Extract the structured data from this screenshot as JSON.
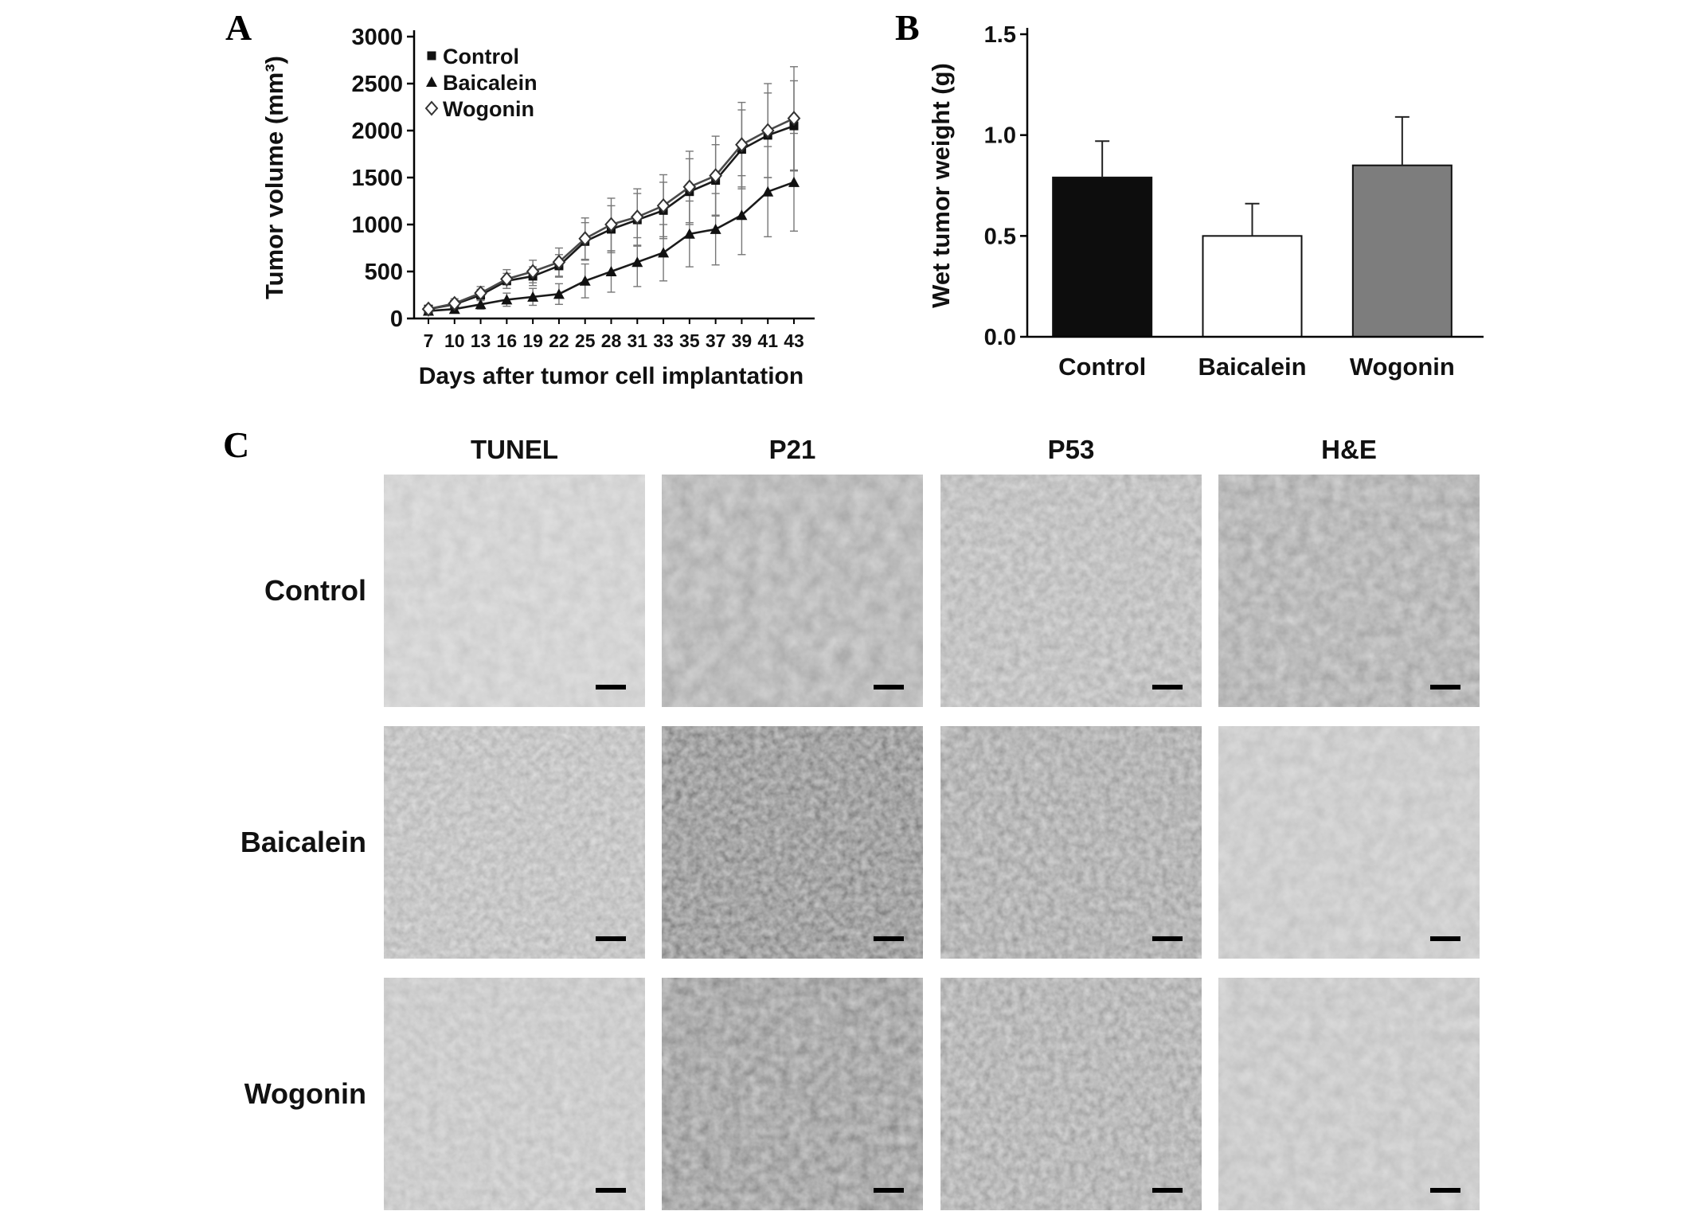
{
  "figure": {
    "panel_a_label": "A",
    "panel_b_label": "B",
    "panel_c_label": "C",
    "background": "#ffffff"
  },
  "chart_data": [
    {
      "id": "tumor-volume",
      "type": "line",
      "title": "",
      "xlabel": "Days after tumor cell implantation",
      "ylabel": "Tumor volume (mm³)",
      "x": [
        7,
        10,
        13,
        16,
        19,
        22,
        25,
        28,
        31,
        33,
        35,
        37,
        39,
        41,
        43
      ],
      "ylim": [
        0,
        3000
      ],
      "yticks": [
        0,
        500,
        1000,
        1500,
        2000,
        2500,
        3000
      ],
      "grid": false,
      "legend_position": "top-left-inside",
      "series": [
        {
          "name": "Control",
          "marker": "filled-square",
          "color": "#1a1a1a",
          "values": [
            100,
            150,
            250,
            400,
            450,
            560,
            820,
            950,
            1050,
            1150,
            1350,
            1470,
            1800,
            1950,
            2050
          ],
          "errors": [
            30,
            40,
            60,
            80,
            100,
            120,
            200,
            250,
            280,
            300,
            350,
            380,
            420,
            450,
            480
          ]
        },
        {
          "name": "Baicalein",
          "marker": "filled-triangle",
          "color": "#1a1a1a",
          "values": [
            80,
            100,
            150,
            200,
            230,
            260,
            400,
            500,
            600,
            700,
            900,
            950,
            1100,
            1350,
            1450
          ],
          "errors": [
            25,
            35,
            50,
            70,
            90,
            110,
            180,
            220,
            260,
            300,
            350,
            380,
            420,
            480,
            520
          ]
        },
        {
          "name": "Wogonin",
          "marker": "open-diamond",
          "color": "#4a4a4a",
          "values": [
            100,
            160,
            270,
            420,
            500,
            600,
            850,
            1000,
            1080,
            1200,
            1400,
            1520,
            1850,
            2000,
            2130
          ],
          "errors": [
            30,
            50,
            70,
            100,
            120,
            150,
            220,
            280,
            300,
            330,
            380,
            420,
            450,
            500,
            550
          ]
        }
      ]
    },
    {
      "id": "wet-tumor-weight",
      "type": "bar",
      "title": "",
      "xlabel": "",
      "ylabel": "Wet tumor weight (g)",
      "categories": [
        "Control",
        "Baicalein",
        "Wogonin"
      ],
      "values": [
        0.79,
        0.5,
        0.85
      ],
      "errors": [
        0.18,
        0.16,
        0.24
      ],
      "bar_colors": [
        "#0d0d0d",
        "#ffffff",
        "#7d7d7d"
      ],
      "ylim": [
        0,
        1.5
      ],
      "yticks": [
        0.0,
        0.5,
        1.0,
        1.5
      ],
      "grid": false
    }
  ],
  "panel_c": {
    "columns": [
      "TUNEL",
      "P21",
      "P53",
      "H&E"
    ],
    "rows": [
      "Control",
      "Baicalein",
      "Wogonin"
    ],
    "tiles": [
      {
        "row": "Control",
        "col": "TUNEL",
        "base": 0.67,
        "contrast": 0.25,
        "freq": 0.055
      },
      {
        "row": "Control",
        "col": "P21",
        "base": 0.52,
        "contrast": 0.38,
        "freq": 0.05
      },
      {
        "row": "Control",
        "col": "P53",
        "base": 0.56,
        "contrast": 0.42,
        "freq": 0.1
      },
      {
        "row": "Control",
        "col": "H&E",
        "base": 0.5,
        "contrast": 0.4,
        "freq": 0.07
      },
      {
        "row": "Baicalein",
        "col": "TUNEL",
        "base": 0.58,
        "contrast": 0.45,
        "freq": 0.12
      },
      {
        "row": "Baicalein",
        "col": "P21",
        "base": 0.38,
        "contrast": 0.58,
        "freq": 0.12
      },
      {
        "row": "Baicalein",
        "col": "P53",
        "base": 0.48,
        "contrast": 0.52,
        "freq": 0.11
      },
      {
        "row": "Baicalein",
        "col": "H&E",
        "base": 0.63,
        "contrast": 0.26,
        "freq": 0.06
      },
      {
        "row": "Wogonin",
        "col": "TUNEL",
        "base": 0.62,
        "contrast": 0.3,
        "freq": 0.09
      },
      {
        "row": "Wogonin",
        "col": "P21",
        "base": 0.42,
        "contrast": 0.52,
        "freq": 0.08
      },
      {
        "row": "Wogonin",
        "col": "P53",
        "base": 0.5,
        "contrast": 0.5,
        "freq": 0.11
      },
      {
        "row": "Wogonin",
        "col": "H&E",
        "base": 0.62,
        "contrast": 0.27,
        "freq": 0.06
      }
    ]
  }
}
